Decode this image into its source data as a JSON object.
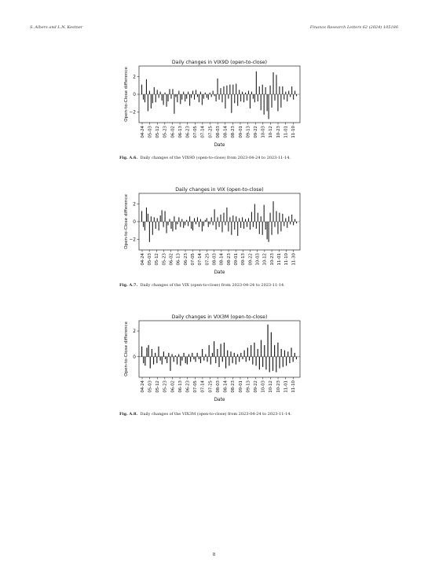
{
  "header": {
    "left": "S. Albers and L.N. Kestner",
    "right": "Finance Research Letters 62 (2024) 105186"
  },
  "page_number": "8",
  "figures": [
    {
      "caption_label": "Fig. A.6.",
      "caption_text": "Daily changes of the VIX9D (open-to-close) from 2023-04-24 to 2023-11-14."
    },
    {
      "caption_label": "Fig. A.7.",
      "caption_text": "Daily changes of the VIX (open-to-close) from 2023-04-24 to 2023-11-14."
    },
    {
      "caption_label": "Fig. A.8.",
      "caption_text": "Daily changes of the VIX3M (open-to-close) from 2023-04-24 to 2023-11-14."
    }
  ],
  "chart_data": [
    {
      "type": "bar",
      "title": "Daily changes in VIX9D (open-to-close)",
      "xlabel": "Date",
      "ylabel": "Open-to-Close difference",
      "ylim": [
        -3.2,
        3.2
      ],
      "yticks": [
        -2,
        0,
        2
      ],
      "grid": false,
      "tick_labels": [
        "04-24",
        "05-03",
        "05-12",
        "05-23",
        "06-02",
        "06-13",
        "06-23",
        "07-05",
        "07-14",
        "07-25",
        "08-03",
        "08-14",
        "08-23",
        "09-01",
        "09-13",
        "09-22",
        "10-03",
        "10-12",
        "10-23",
        "11-01",
        "11-10"
      ],
      "values": [
        1.1,
        -0.6,
        -0.9,
        1.7,
        -1.9,
        0.4,
        -1.6,
        -1.0,
        0.8,
        -0.9,
        0.5,
        -0.4,
        0.3,
        -0.7,
        -1.2,
        0.2,
        -1.4,
        -0.8,
        0.6,
        -0.5,
        0.6,
        -2.2,
        -0.3,
        -0.9,
        0.4,
        -1.1,
        -0.6,
        0.3,
        -0.8,
        -0.5,
        0.3,
        -1.3,
        -0.4,
        0.4,
        -0.6,
        0.5,
        -0.3,
        -0.9,
        0.3,
        -1.2,
        -0.5,
        0.2,
        -0.4,
        -0.6,
        0.2,
        -0.3,
        0.4,
        -0.2,
        -0.8,
        1.8,
        -0.6,
        0.7,
        -0.9,
        0.9,
        -1.6,
        1.0,
        -0.5,
        1.1,
        -2.1,
        1.1,
        -1.0,
        1.2,
        -1.3,
        0.5,
        -0.8,
        0.3,
        -0.9,
        0.2,
        -0.7,
        0.4,
        -1.6,
        0.3,
        -0.5,
        -0.9,
        2.6,
        -0.8,
        0.9,
        -1.8,
        1.1,
        -2.3,
        0.8,
        -1.9,
        -2.8,
        1.0,
        -1.5,
        2.5,
        -0.7,
        2.2,
        -1.9,
        0.9,
        -1.5,
        0.9,
        -0.6,
        0.3,
        -0.8,
        0.4,
        -0.3,
        0.9,
        -0.6,
        0.4,
        -0.2
      ]
    },
    {
      "type": "bar",
      "title": "Daily changes in VIX (open-to-close)",
      "xlabel": "Date",
      "ylabel": "Open-to-Close difference",
      "ylim": [
        -3.2,
        3.2
      ],
      "yticks": [
        -2,
        0,
        2
      ],
      "grid": false,
      "tick_labels": [
        "04-24",
        "05-03",
        "05-12",
        "05-23",
        "06-02",
        "06-13",
        "06-23",
        "07-05",
        "07-14",
        "07-25",
        "08-03",
        "08-14",
        "08-23",
        "09-01",
        "09-13",
        "09-22",
        "10-03",
        "10-12",
        "10-23",
        "11-01",
        "11-10",
        "11-30"
      ],
      "values": [
        1.2,
        -0.6,
        -1.0,
        1.6,
        0.9,
        -2.3,
        0.6,
        -1.5,
        0.5,
        -0.8,
        0.4,
        -1.0,
        0.7,
        1.3,
        -0.6,
        1.2,
        -1.3,
        -0.4,
        0.3,
        -0.8,
        -1.1,
        0.6,
        -0.9,
        -0.3,
        0.5,
        -0.6,
        0.3,
        -0.7,
        -0.4,
        0.2,
        -0.5,
        0.6,
        -0.8,
        -1.0,
        0.4,
        -0.3,
        0.5,
        -0.6,
        0.3,
        -1.1,
        -0.5,
        0.2,
        0.4,
        -0.6,
        -0.3,
        0.5,
        -0.4,
        1.4,
        -0.9,
        0.5,
        -0.6,
        0.8,
        -1.2,
        1.0,
        -0.4,
        1.6,
        -1.1,
        0.5,
        -1.5,
        0.7,
        -0.9,
        0.6,
        -1.6,
        0.4,
        -0.7,
        0.5,
        -0.8,
        0.3,
        -0.6,
        0.4,
        -0.9,
        1.1,
        -0.6,
        2.0,
        -0.8,
        1.0,
        -1.4,
        0.6,
        -1.5,
        1.9,
        -0.9,
        -2.0,
        -2.3,
        1.0,
        -1.5,
        2.3,
        -0.6,
        1.2,
        -1.4,
        1.0,
        -1.1,
        0.9,
        -0.5,
        0.4,
        -0.7,
        0.6,
        -0.3,
        0.8,
        -0.4,
        0.3,
        -0.2
      ]
    },
    {
      "type": "bar",
      "title": "Daily changes in VIX3M (open-to-close)",
      "xlabel": "Date",
      "ylabel": "Open-to-Close difference",
      "ylim": [
        -1.6,
        2.8
      ],
      "yticks": [
        0,
        2
      ],
      "grid": false,
      "tick_labels": [
        "04-24",
        "05-03",
        "05-12",
        "05-23",
        "06-02",
        "06-13",
        "06-23",
        "07-05",
        "07-14",
        "07-25",
        "08-03",
        "08-14",
        "08-23",
        "09-01",
        "09-13",
        "09-22",
        "10-03",
        "10-12",
        "10-23",
        "11-01",
        "11-10"
      ],
      "values": [
        0.8,
        -0.5,
        -0.7,
        0.7,
        0.9,
        -0.9,
        0.6,
        -0.6,
        0.3,
        -0.5,
        0.8,
        -0.3,
        -0.6,
        0.4,
        -0.2,
        -0.5,
        0.3,
        -1.1,
        0.2,
        -0.4,
        0.1,
        -0.6,
        0.2,
        -0.7,
        -0.3,
        0.3,
        -0.5,
        -0.6,
        0.2,
        -0.4,
        0.3,
        -0.2,
        -0.4,
        0.3,
        -0.2,
        -0.5,
        0.6,
        -0.3,
        0.2,
        -0.4,
        0.9,
        -0.6,
        0.3,
        1.2,
        -0.5,
        0.6,
        -0.8,
        1.0,
        -0.4,
        1.1,
        -0.9,
        0.5,
        -0.7,
        0.4,
        -0.5,
        0.3,
        -0.6,
        0.2,
        -0.4,
        0.3,
        -0.2,
        0.5,
        -0.4,
        0.7,
        -0.3,
        0.9,
        -0.6,
        1.1,
        -0.7,
        0.6,
        -1.0,
        1.3,
        -0.8,
        0.9,
        -1.0,
        2.5,
        -1.2,
        1.9,
        -1.1,
        0.9,
        -1.2,
        1.1,
        -0.9,
        0.6,
        -0.8,
        0.5,
        -0.7,
        0.4,
        -0.5,
        0.7,
        -0.4,
        0.3,
        -0.2
      ]
    }
  ]
}
